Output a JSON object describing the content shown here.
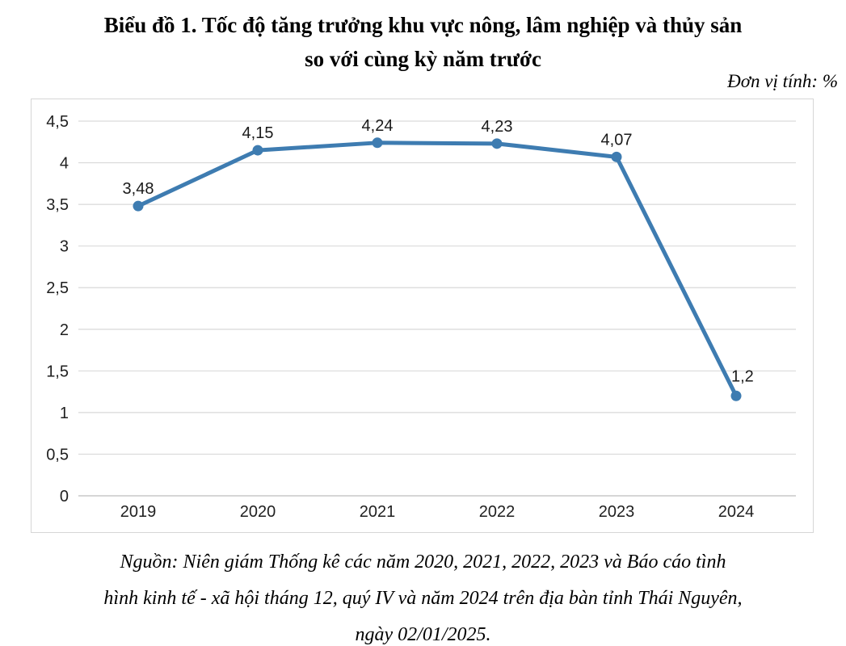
{
  "page": {
    "title_lines": [
      "Biểu đồ 1. Tốc độ tăng trưởng khu vực nông, lâm nghiệp và thủy sản",
      "so với cùng kỳ năm trước"
    ],
    "unit_label": "Đơn vị tính: %",
    "source_lines": [
      "Nguồn: Niên giám Thống kê các năm 2020, 2021, 2022, 2023 và Báo cáo tình",
      "hình kinh tế - xã hội tháng 12, quý IV và năm 2024 trên địa bàn tỉnh Thái Nguyên,",
      "ngày 02/01/2025."
    ]
  },
  "chart_data": {
    "type": "line",
    "title": "Biểu đồ 1. Tốc độ tăng trưởng khu vực nông, lâm nghiệp và thủy sản so với cùng kỳ năm trước",
    "unit_label": "Đơn vị tính: %",
    "categories": [
      "2019",
      "2020",
      "2021",
      "2022",
      "2023",
      "2024"
    ],
    "values": [
      3.48,
      4.15,
      4.24,
      4.23,
      4.07,
      1.2
    ],
    "data_labels": [
      "3,48",
      "4,15",
      "4,24",
      "4,23",
      "4,07",
      "1,2"
    ],
    "xlabel": "",
    "ylabel": "",
    "ylim": [
      0,
      4.5
    ],
    "yticks": [
      {
        "value": 0,
        "label": "0"
      },
      {
        "value": 0.5,
        "label": "0,5"
      },
      {
        "value": 1,
        "label": "1"
      },
      {
        "value": 1.5,
        "label": "1,5"
      },
      {
        "value": 2,
        "label": "2"
      },
      {
        "value": 2.5,
        "label": "2,5"
      },
      {
        "value": 3,
        "label": "3"
      },
      {
        "value": 3.5,
        "label": "3,5"
      },
      {
        "value": 4,
        "label": "4"
      },
      {
        "value": 4.5,
        "label": "4,5"
      }
    ],
    "grid": true,
    "legend": "none",
    "colors": {
      "line": "#3e7cb1",
      "marker": "#3e7cb1",
      "gridline": "#d9d9d9",
      "axis_line": "#c8c8c8",
      "chart_border": "#d6d6d6",
      "text": "#1f1f1f"
    }
  }
}
